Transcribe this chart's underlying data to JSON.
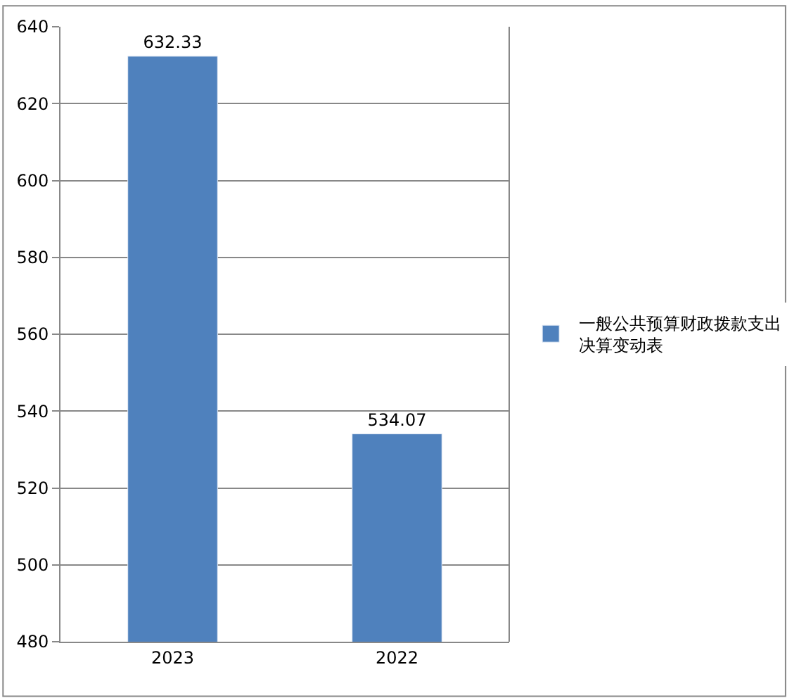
{
  "chart_data": {
    "type": "bar",
    "categories": [
      "2023",
      "2022"
    ],
    "series": [
      {
        "name": "一般公共预算财政拨款支出决算变动表",
        "color": "#4f81bd",
        "values": [
          632.33,
          534.07
        ]
      }
    ],
    "ylim": [
      480,
      640
    ],
    "yticks": [
      480,
      500,
      520,
      540,
      560,
      580,
      600,
      620,
      640
    ],
    "grid": "y",
    "legend": "right",
    "data_labels": true
  }
}
